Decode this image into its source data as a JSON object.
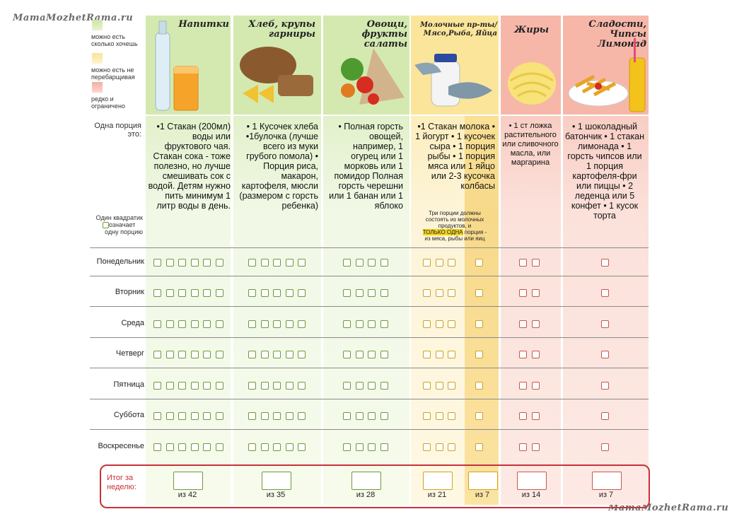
{
  "watermark": "MamaMozhetRama.ru",
  "watermark_bottom": "MamaMozhetRama.ru",
  "legend": [
    {
      "text": "можно есть сколько хочешь",
      "color": "#8cc63f"
    },
    {
      "text": "можно есть не перебарщивая",
      "color": "#f7d96a"
    },
    {
      "text": "редко и ограничено",
      "color": "#f08a7a"
    }
  ],
  "columns": [
    {
      "title": "Напитки",
      "portion": "•1 Стакан (200мл) воды или фруктового чая. Стакан сока - тоже полезно, но лучше смешивать сок с водой. Детям нужно пить минимум 1 литр воды в день.",
      "total": "из 42",
      "boxes": 6,
      "color": "green"
    },
    {
      "title": "Хлеб, крупы гарниры",
      "portion": "• 1 Кусочек хлеба •1булочка (лучше всего из муки грубого помола) • Порция риса, макарон, картофеля, мюсли (размером с горсть ребенка)",
      "total": "из 35",
      "boxes": 5,
      "color": "green"
    },
    {
      "title": "Овощи, фрукты салаты",
      "portion": "• Полная горсть овощей, например, 1 огурец или 1 морковь или 1 помидор Полная горсть черешни или 1 банан или 1 яблоко",
      "total": "из 28",
      "boxes": 4,
      "color": "green"
    },
    {
      "title": "Молочные пр-ты/ Мясо,Рыба, Яйца",
      "portion": "•1 Стакан молока • 1 йогурт • 1 кусочек сыра • 1 порция рыбы • 1 порция мяса или 1 яйцо или 2-3 кусочка колбасы",
      "total": "из 21",
      "total2": "из 7",
      "boxes": 3,
      "color": "yellow"
    },
    {
      "title": "Жиры",
      "portion": "• 1 ст ложка растительного или сливочного масла, или маргарина",
      "total": "из 14",
      "boxes": 2,
      "color": "red"
    },
    {
      "title": "Сладости, Чипсы Лимонад",
      "portion": "• 1 шоколадный батончик • 1 стакан лимонада • 1 горсть чипсов или 1 порция картофеля-фри или пиццы • 2 леденца или 5 конфет • 1 кусок торта",
      "total": "из 7",
      "boxes": 1,
      "color": "red"
    }
  ],
  "labels": {
    "portion_label": "Одна порция это:",
    "square_label_1": "Один квадратик",
    "square_label_2": "означает",
    "square_label_3": "одну порцию",
    "total_label": "Итог за неделю:",
    "dairy_note_1": "Три порции должны",
    "dairy_note_2": "состоять из молочных",
    "dairy_note_3": "продуктов, и",
    "dairy_note_4_hl": "ТОЛЬКО ОДНА",
    "dairy_note_4": "порция -",
    "dairy_note_5": "из мяса, рыбы или яиц"
  },
  "days": [
    "Понедельник",
    "Вторник",
    "Среда",
    "Четверг",
    "Пятница",
    "Суббота",
    "Воскресенье"
  ],
  "colors": {
    "green": "#8cc63f",
    "yellow": "#f7d96a",
    "red": "#f08a7a",
    "frame": "#c8313a"
  }
}
